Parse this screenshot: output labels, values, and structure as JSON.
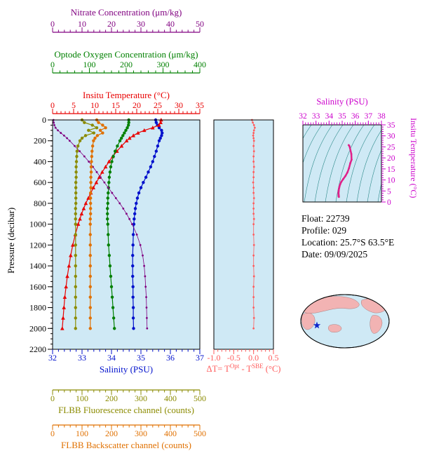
{
  "info": {
    "lines": [
      "Float:  22739",
      "Profile:  029",
      "Location:  25.7°S  63.5°E",
      "Date:  09/09/2025"
    ]
  },
  "map": {
    "ocean_color": "#cfe9f5",
    "land_color": "#f2b3b3",
    "outline_color": "#000000",
    "marker": "star",
    "marker_color": "#1026c9"
  },
  "chart_data": [
    {
      "id": "profile-panel",
      "type": "line",
      "panel_bg": "#cfe9f5",
      "y_axis": {
        "id": "pressure",
        "label": "Pressure (decibar)",
        "color": "#000000",
        "min": 0,
        "max": 2200,
        "ticks": [
          0,
          200,
          400,
          600,
          800,
          1000,
          1200,
          1400,
          1600,
          1800,
          2000,
          2200
        ],
        "minor_step": 50,
        "reversed": true,
        "title_name": "pressure-axis-title"
      },
      "pressures": [
        0,
        25,
        50,
        75,
        100,
        125,
        150,
        175,
        200,
        250,
        300,
        350,
        400,
        450,
        500,
        550,
        600,
        650,
        700,
        750,
        800,
        850,
        900,
        950,
        1000,
        1100,
        1200,
        1300,
        1400,
        1500,
        1600,
        1700,
        1800,
        1900,
        2000
      ],
      "x_axes": [
        {
          "id": "salinity",
          "label": "Salinity (PSU)",
          "color": "#0010cc",
          "min": 32,
          "max": 37,
          "ticks": [
            32,
            33,
            34,
            35,
            36,
            37
          ],
          "minor_step": 0.2,
          "title_name": "axis-title-salinity"
        },
        {
          "id": "fluorescence",
          "label": "FLBB Fluorescence channel (counts)",
          "color": "#8b8b00",
          "min": 0,
          "max": 500,
          "ticks": [
            0,
            100,
            200,
            300,
            400,
            500
          ],
          "minor_step": 20,
          "title_name": "axis-title-fluorescence"
        },
        {
          "id": "backscatter",
          "label": "FLBB Backscatter channel (counts)",
          "color": "#e07000",
          "min": 0,
          "max": 500,
          "ticks": [
            0,
            100,
            200,
            300,
            400,
            500
          ],
          "minor_step": 20,
          "title_name": "axis-title-backscatter"
        },
        {
          "id": "temperature",
          "label": "Insitu Temperature (°C)",
          "color": "#e80000",
          "min": 0,
          "max": 35,
          "ticks": [
            0,
            5,
            10,
            15,
            20,
            25,
            30,
            35
          ],
          "minor_step": 1,
          "title_name": "axis-title-temperature"
        },
        {
          "id": "oxygen",
          "label": "Optode Oxygen Concentration (μm/kg)",
          "color": "#008000",
          "min": 0,
          "max": 400,
          "ticks": [
            0,
            100,
            200,
            300,
            400
          ],
          "minor_step": 20,
          "title_name": "axis-title-oxygen"
        },
        {
          "id": "nitrate",
          "label": "Nitrate Concentration (μm/kg)",
          "color": "#800080",
          "min": 0,
          "max": 50,
          "ticks": [
            0,
            10,
            20,
            30,
            40,
            50
          ],
          "minor_step": 2,
          "title_name": "axis-title-nitrate"
        }
      ],
      "series": [
        {
          "name": "salinity",
          "axis": "salinity",
          "color": "#0010cc",
          "marker": "circle",
          "width": 1.2,
          "values": [
            35.5,
            35.52,
            35.56,
            35.62,
            35.7,
            35.72,
            35.7,
            35.66,
            35.62,
            35.57,
            35.52,
            35.46,
            35.4,
            35.33,
            35.25,
            35.17,
            35.08,
            35.0,
            34.93,
            34.88,
            34.84,
            34.81,
            34.79,
            34.77,
            34.76,
            34.74,
            34.73,
            34.72,
            34.72,
            34.72,
            34.73,
            34.73,
            34.74,
            34.74,
            34.75
          ]
        },
        {
          "name": "temperature",
          "axis": "temperature",
          "color": "#e80000",
          "marker": "triangle",
          "width": 1.2,
          "values": [
            25.8,
            25.7,
            25.3,
            23.8,
            21.8,
            20.3,
            19.2,
            18.3,
            17.6,
            16.4,
            15.3,
            14.3,
            13.4,
            12.6,
            11.8,
            11.1,
            10.4,
            9.7,
            9.1,
            8.5,
            7.9,
            7.4,
            6.9,
            6.5,
            6.1,
            5.4,
            4.8,
            4.3,
            3.9,
            3.5,
            3.2,
            2.9,
            2.7,
            2.5,
            2.3
          ]
        },
        {
          "name": "oxygen",
          "axis": "oxygen",
          "color": "#008000",
          "marker": "circle",
          "width": 1.2,
          "values": [
            207,
            207,
            206,
            203,
            199,
            195,
            191,
            187,
            183,
            176,
            170,
            165,
            161,
            158,
            156,
            154,
            153,
            152,
            151,
            150,
            150,
            149,
            149,
            149,
            150,
            151,
            152,
            154,
            156,
            158,
            160,
            162,
            164,
            166,
            168
          ]
        },
        {
          "name": "nitrate",
          "axis": "nitrate",
          "color": "#800080",
          "marker": "dot",
          "width": 0.8,
          "values": [
            0.3,
            0.4,
            0.6,
            1.0,
            1.8,
            2.8,
            3.9,
            4.9,
            5.8,
            7.5,
            9.2,
            10.8,
            12.3,
            13.7,
            15.0,
            16.3,
            17.6,
            18.9,
            20.2,
            21.5,
            22.8,
            24.0,
            25.1,
            26.1,
            27.0,
            28.6,
            29.8,
            30.6,
            31.1,
            31.4,
            31.6,
            31.8,
            31.9,
            32.0,
            32.1
          ]
        },
        {
          "name": "fluorescence",
          "axis": "fluorescence",
          "color": "#8b8b00",
          "marker": "circle",
          "width": 1.2,
          "values": [
            100,
            108,
            135,
            150,
            122,
            140,
            112,
            100,
            93,
            86,
            83,
            82,
            81,
            80,
            80,
            80,
            79,
            79,
            79,
            79,
            79,
            78,
            78,
            78,
            78,
            78,
            78,
            78,
            78,
            78,
            78,
            78,
            78,
            78,
            78
          ]
        },
        {
          "name": "backscatter",
          "axis": "backscatter",
          "color": "#e07000",
          "marker": "circle",
          "width": 1.2,
          "values": [
            150,
            156,
            170,
            180,
            162,
            170,
            152,
            144,
            139,
            136,
            134,
            133,
            132,
            131,
            131,
            130,
            130,
            130,
            129,
            129,
            129,
            129,
            129,
            128,
            128,
            128,
            128,
            128,
            128,
            128,
            128,
            128,
            128,
            128,
            128
          ]
        }
      ]
    },
    {
      "id": "delta-t-panel",
      "type": "line",
      "panel_bg": "#cfe9f5",
      "x_axis": {
        "id": "dt",
        "color": "#ff5c5c",
        "min": -1.0,
        "max": 0.5,
        "ticks": [
          -1,
          -0.5,
          0,
          0.5
        ],
        "tick_labels": [
          "-1.0",
          "-0.5",
          "0.0",
          "0.5"
        ],
        "minor_step": 0.1,
        "label_parts": {
          "pre": "ΔT= T",
          "sup1": "Opt",
          "mid": " - T",
          "sup2": "SBE",
          "post": " (°C)"
        },
        "title_name": "dt-axis-title"
      },
      "series": [
        {
          "name": "delta-t",
          "color": "#ff5c5c",
          "marker": "dot",
          "width": 0.8,
          "values": [
            -0.04,
            -0.02,
            0.01,
            0.03,
            0.01,
            0,
            -0.01,
            0,
            0.01,
            0,
            0.01,
            0,
            0,
            0.01,
            0,
            0,
            -0.01,
            0,
            0,
            0.01,
            0,
            0,
            0,
            0.01,
            0,
            0,
            0.01,
            0,
            0,
            0.01,
            0,
            0,
            0,
            0.01,
            0
          ]
        }
      ]
    },
    {
      "id": "ts-diagram",
      "type": "line",
      "panel_bg": "#cfe9f5",
      "contour_color": "#2e8b8b",
      "x_axis": {
        "id": "ts-salinity",
        "label": "Salinity (PSU)",
        "color": "#cc00cc",
        "min": 32,
        "max": 38,
        "ticks": [
          32,
          33,
          34,
          35,
          36,
          37,
          38
        ],
        "minor_step": 0.2,
        "title_name": "ts-salinity-title"
      },
      "y_axis": {
        "id": "ts-temperature",
        "label": "Insitu Temperature (°C)",
        "color": "#cc00cc",
        "min": 0,
        "max": 35,
        "ticks": [
          0,
          5,
          10,
          15,
          20,
          25,
          30,
          35
        ],
        "minor_step": 1,
        "title_name": "ts-temperature-title"
      },
      "series": [
        {
          "name": "t-s-curve",
          "color": "#e0218a",
          "marker": "dot",
          "width": 2.5,
          "points": [
            [
              35.5,
              25.8
            ],
            [
              35.56,
              25.3
            ],
            [
              35.7,
              21.8
            ],
            [
              35.72,
              19.2
            ],
            [
              35.62,
              17.6
            ],
            [
              35.52,
              15.3
            ],
            [
              35.4,
              13.4
            ],
            [
              35.25,
              11.8
            ],
            [
              35.08,
              10.4
            ],
            [
              34.93,
              9.1
            ],
            [
              34.84,
              7.9
            ],
            [
              34.79,
              6.9
            ],
            [
              34.76,
              6.1
            ],
            [
              34.74,
              5.4
            ],
            [
              34.73,
              4.8
            ],
            [
              34.72,
              4.3
            ],
            [
              34.72,
              3.9
            ],
            [
              34.72,
              3.5
            ],
            [
              34.73,
              3.2
            ],
            [
              34.73,
              2.9
            ],
            [
              34.74,
              2.7
            ],
            [
              34.74,
              2.5
            ],
            [
              34.75,
              2.3
            ]
          ]
        }
      ]
    }
  ]
}
